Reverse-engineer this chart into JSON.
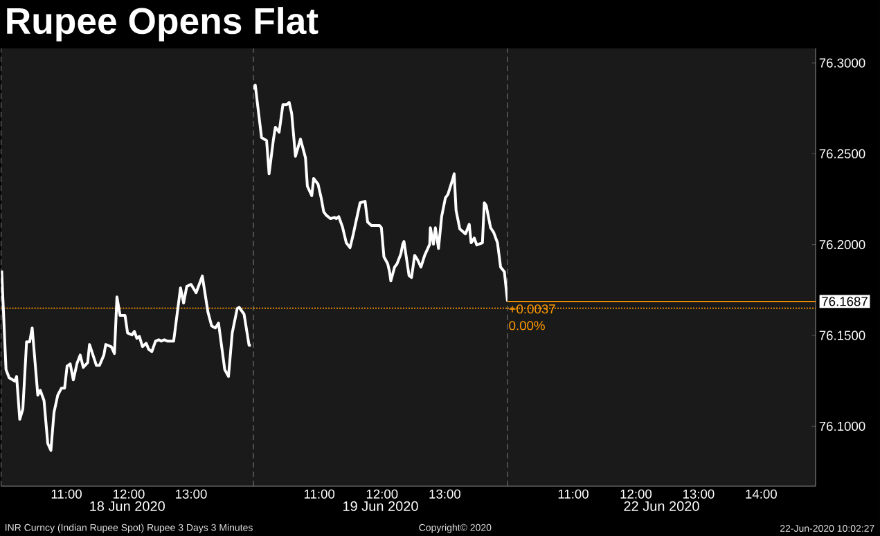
{
  "chart_data": [
    {
      "type": "line",
      "title": "Rupee Opens Flat",
      "xlabel": "18 Jun 2020",
      "tick_labels": "x",
      "x": [
        9.96,
        10.03,
        10.08,
        10.14,
        10.17,
        10.2,
        10.25,
        10.3,
        10.36,
        10.41,
        10.45,
        10.54,
        10.58,
        10.64,
        10.7,
        10.75,
        10.8,
        10.86,
        10.92,
        10.97,
        11.01,
        11.06,
        11.11,
        11.17,
        11.22,
        11.27,
        11.34,
        11.37,
        11.48,
        11.53,
        11.6,
        11.63,
        11.72,
        11.77,
        11.81,
        11.86,
        11.94,
        11.98,
        12.05,
        12.09,
        12.13,
        12.17,
        12.22,
        12.28,
        12.32,
        12.37,
        12.43,
        12.48,
        12.52,
        12.57,
        12.62,
        12.72,
        12.83,
        12.88,
        12.93,
        13.0,
        13.08,
        13.18,
        13.27,
        13.33,
        13.39,
        13.44,
        13.54,
        13.6,
        13.66,
        13.74,
        13.77,
        13.85,
        13.93,
        13.96
      ],
      "series": [
        {
          "color": "#ffffff",
          "values": [
            76.1857,
            76.1312,
            76.1267,
            76.1255,
            76.1248,
            76.1274,
            76.1038,
            76.1095,
            76.1465,
            76.1465,
            76.1541,
            76.1171,
            76.1198,
            76.1141,
            76.0905,
            76.0867,
            76.1076,
            76.1171,
            76.121,
            76.121,
            76.1331,
            76.1343,
            76.1255,
            76.1347,
            76.1392,
            76.1324,
            76.135,
            76.145,
            76.1335,
            76.1335,
            76.1392,
            76.145,
            76.1438,
            76.14,
            76.1712,
            76.161,
            76.161,
            76.1514,
            76.1503,
            76.1522,
            76.1484,
            76.1495,
            76.1438,
            76.1457,
            76.1423,
            76.1411,
            76.1469,
            76.1476,
            76.1469,
            76.1476,
            76.1469,
            76.1469,
            76.1762,
            76.1678,
            76.177,
            76.1781,
            76.1735,
            76.1827,
            76.1629,
            76.1552,
            76.1541,
            76.1568,
            76.1312,
            76.1274,
            76.1514,
            76.1648,
            76.1655,
            76.1617,
            76.1446,
            76.1446
          ]
        }
      ],
      "xlim": [
        9.95,
        14.0
      ],
      "xticks": [
        {
          "value": 11,
          "label": "11:00"
        },
        {
          "value": 12,
          "label": "12:00"
        },
        {
          "value": 13,
          "label": "13:00"
        }
      ],
      "ylim": [
        76.067,
        76.308
      ],
      "ref_lines": [
        {
          "axis": "y",
          "value": 76.165,
          "color": "#ff9900",
          "line_style": "dotted"
        }
      ],
      "annotations": [
        "INR Curncy (Indian Rupee Spot) Rupee 3 Days 3 Minutes",
        "Copyright© 2020",
        "22-Jun-2020 10:02:27"
      ]
    },
    {
      "type": "line",
      "xlabel": "19 Jun 2020",
      "tick_labels": "x",
      "x": [
        9.95,
        9.98,
        10.02,
        10.08,
        10.16,
        10.2,
        10.27,
        10.3,
        10.36,
        10.42,
        10.48,
        10.52,
        10.56,
        10.62,
        10.7,
        10.78,
        10.81,
        10.88,
        10.91,
        10.98,
        11.03,
        11.07,
        11.11,
        11.18,
        11.24,
        11.27,
        11.31,
        11.37,
        11.43,
        11.49,
        11.54,
        11.65,
        11.73,
        11.77,
        11.83,
        11.89,
        11.96,
        11.99,
        12.03,
        12.09,
        12.12,
        12.14,
        12.2,
        12.24,
        12.3,
        12.33,
        12.35,
        12.43,
        12.47,
        12.52,
        12.57,
        12.62,
        12.68,
        12.76,
        12.77,
        12.82,
        12.85,
        12.9,
        12.95,
        13.01,
        13.05,
        13.13,
        13.15,
        13.18,
        13.24,
        13.33,
        13.39,
        13.42,
        13.47,
        13.51,
        13.6,
        13.63,
        13.66,
        13.73,
        13.78,
        13.84,
        13.89,
        13.95,
        14.0
      ],
      "series": [
        {
          "color": "#ffffff",
          "values": [
            76.2855,
            76.2878,
            76.276,
            76.2589,
            76.2573,
            76.239,
            76.2581,
            76.2646,
            76.2619,
            76.2771,
            76.2771,
            76.2783,
            76.2722,
            76.2486,
            76.2581,
            76.2478,
            76.2322,
            76.2269,
            76.2364,
            76.2333,
            76.2257,
            76.2181,
            76.2162,
            76.2143,
            76.215,
            76.2143,
            76.2154,
            76.2097,
            76.201,
            76.1983,
            76.2055,
            76.223,
            76.2238,
            76.2124,
            76.2105,
            76.2105,
            76.2105,
            76.2093,
            76.1933,
            76.1895,
            76.185,
            76.18,
            76.1876,
            76.1895,
            76.1949,
            76.2002,
            76.2017,
            76.183,
            76.1819,
            76.1941,
            76.1914,
            76.1876,
            76.1941,
            76.2002,
            76.2093,
            76.2002,
            76.2093,
            76.1979,
            76.2154,
            76.2257,
            76.2276,
            76.2364,
            76.239,
            76.2189,
            76.2086,
            76.2059,
            76.2112,
            76.201,
            76.2036,
            76.1998,
            76.201,
            76.223,
            76.2215,
            76.2093,
            76.2067,
            76.201,
            76.1876,
            76.185,
            76.1687
          ]
        }
      ],
      "xlim": [
        9.95,
        14.0
      ],
      "xticks": [
        {
          "value": 11,
          "label": "11:00"
        },
        {
          "value": 12,
          "label": "12:00"
        },
        {
          "value": 13,
          "label": "13:00"
        }
      ],
      "ylim": [
        76.067,
        76.308
      ],
      "ref_lines": [
        {
          "axis": "y",
          "value": 76.165,
          "color": "#ff9900",
          "line_style": "dotted"
        }
      ]
    },
    {
      "type": "line",
      "xlabel": "22 Jun 2020",
      "xlim": [
        9.95,
        14.87
      ],
      "xticks": [
        {
          "value": 11,
          "label": "11:00"
        },
        {
          "value": 12,
          "label": "12:00"
        },
        {
          "value": 13,
          "label": "13:00"
        },
        {
          "value": 14,
          "label": "14:00"
        }
      ],
      "ylim": [
        76.067,
        76.308
      ],
      "yticks": [
        {
          "value": 76.1,
          "label": "76.1000"
        },
        {
          "value": 76.15,
          "label": "76.1500"
        },
        {
          "value": 76.2,
          "label": "76.2000"
        },
        {
          "value": 76.25,
          "label": "76.2500"
        },
        {
          "value": 76.3,
          "label": "76.3000"
        }
      ],
      "ref_lines": [
        {
          "axis": "y",
          "value": 76.165,
          "color": "#ff9900",
          "line_style": "dotted"
        },
        {
          "axis": "y",
          "value": 76.1687,
          "label": "76.1687",
          "color": "#ff9900",
          "line_style": "solid"
        }
      ],
      "annotations": [
        {
          "text": "+0.0037",
          "x": 9.95,
          "y": 76.1687
        },
        {
          "text": "0.00%",
          "x": 9.95,
          "y": 76.1687
        }
      ]
    }
  ]
}
